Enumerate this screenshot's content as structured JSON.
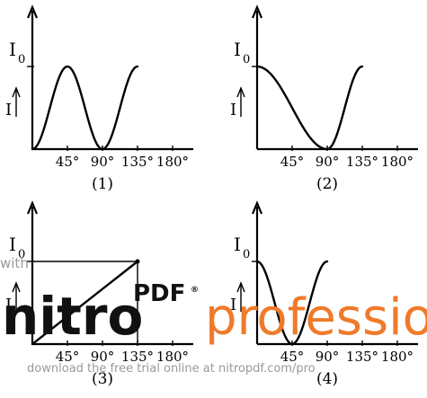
{
  "chart_data": [
    {
      "type": "line",
      "caption": "(1)",
      "ylabel": "I",
      "y_ref_label": "I",
      "y_ref_sub": "0",
      "x_ticks": [
        "45°",
        "90°",
        "135°",
        "180°"
      ],
      "xlim": [
        0,
        180
      ],
      "ylim": [
        0,
        1
      ],
      "x": [
        0,
        15,
        30,
        45,
        60,
        75,
        90,
        105,
        120,
        135
      ],
      "values": [
        0,
        0.25,
        0.75,
        1,
        0.75,
        0.25,
        0,
        0.25,
        0.75,
        1
      ]
    },
    {
      "type": "line",
      "caption": "(2)",
      "ylabel": "I",
      "y_ref_label": "I",
      "y_ref_sub": "0",
      "x_ticks": [
        "45°",
        "90°",
        "135°",
        "180°"
      ],
      "xlim": [
        0,
        180
      ],
      "ylim": [
        0,
        1
      ],
      "x": [
        0,
        15,
        30,
        45,
        60,
        75,
        90,
        105,
        120,
        135
      ],
      "values": [
        1,
        0.93,
        0.75,
        0.5,
        0.25,
        0.07,
        0,
        0.25,
        0.75,
        1
      ]
    },
    {
      "type": "line",
      "caption": "(3)",
      "ylabel": "I",
      "y_ref_label": "I",
      "y_ref_sub": "0",
      "x_ticks": [
        "45°",
        "90°",
        "135°",
        "180°"
      ],
      "xlim": [
        0,
        180
      ],
      "ylim": [
        0,
        1
      ],
      "x": [
        0,
        135
      ],
      "values": [
        0,
        1
      ]
    },
    {
      "type": "line",
      "caption": "(4)",
      "ylabel": "I",
      "y_ref_label": "I",
      "y_ref_sub": "0",
      "x_ticks": [
        "45°",
        "90°",
        "135°",
        "180°"
      ],
      "xlim": [
        0,
        180
      ],
      "ylim": [
        0,
        1
      ],
      "x": [
        0,
        15,
        30,
        45,
        60,
        75,
        90
      ],
      "values": [
        1,
        0.75,
        0.25,
        0,
        0.25,
        0.75,
        1
      ]
    }
  ],
  "watermark": {
    "with_text": "with",
    "nitro": "nitro",
    "pdf": "PDF",
    "reg": "®",
    "professional": "professio",
    "download_text": "download the free trial online at nitropdf.com/pro"
  }
}
